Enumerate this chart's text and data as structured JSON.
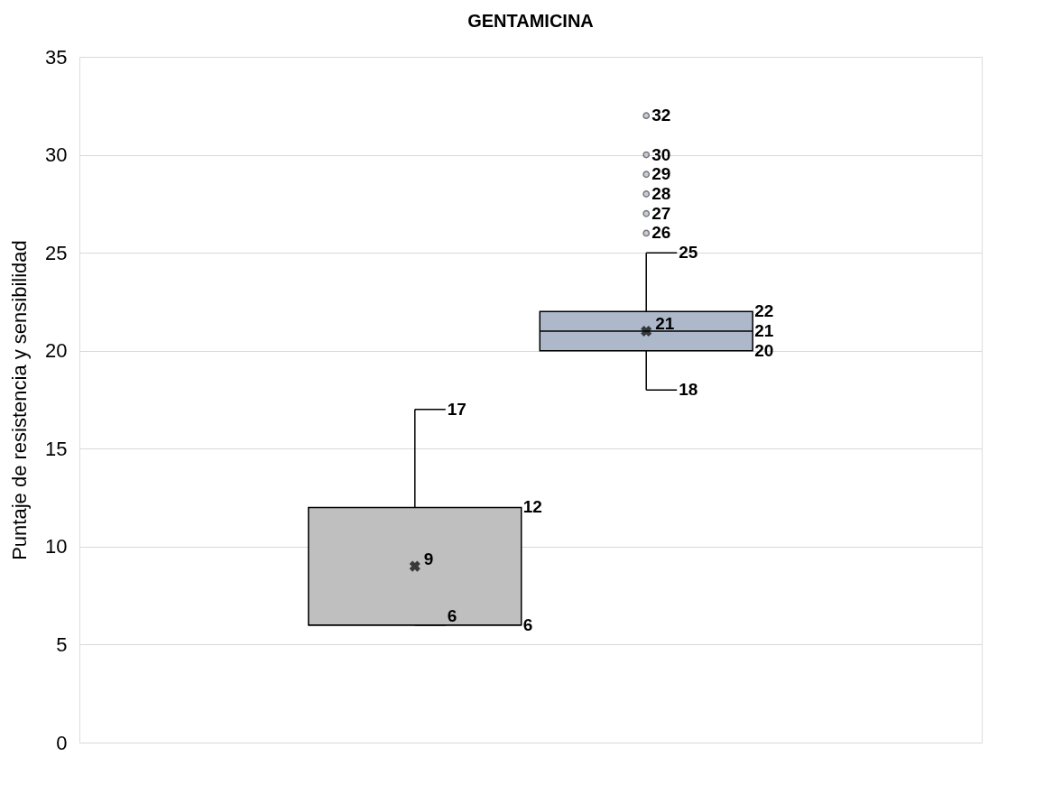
{
  "chart_data": {
    "type": "box",
    "title": "GENTAMICINA",
    "ylabel": "Puntaje de resistencia y sensibilidad",
    "categories": [
      null,
      null
    ],
    "boxes": [
      {
        "low": 6,
        "q1": 6,
        "median": 6,
        "q3": 12,
        "high": 17,
        "mean": 9
      },
      {
        "low": 18,
        "q1": 20,
        "median": 21,
        "q3": 22,
        "high": 25,
        "mean": 21,
        "outliers": [
          26,
          27,
          28,
          29,
          30,
          32
        ]
      }
    ],
    "colors": [
      "#bfbfbf",
      "#adb9ca"
    ],
    "ylim": [
      0,
      35
    ],
    "yticks": [
      0,
      5,
      10,
      15,
      20,
      25,
      30,
      35
    ],
    "grid": "y",
    "marker": "circle",
    "annotations": [
      "17",
      "12",
      "9",
      "6",
      "6",
      "32",
      "30",
      "29",
      "28",
      "27",
      "26",
      "25",
      "22",
      "21",
      "21",
      "20",
      "18"
    ]
  }
}
